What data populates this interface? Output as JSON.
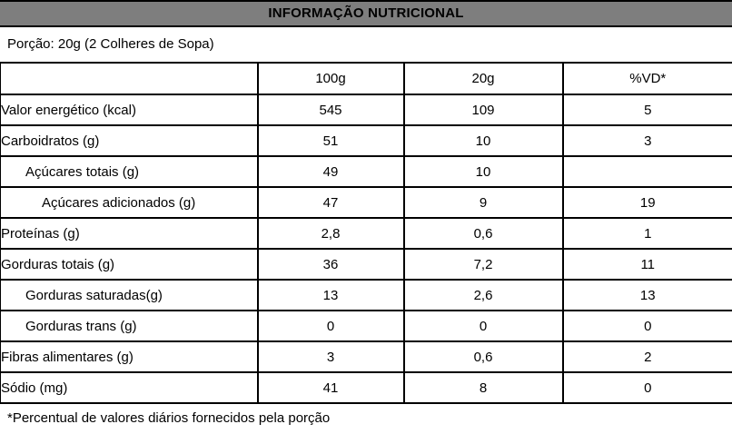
{
  "title_bar": {
    "title": "INFORMAÇÃO NUTRICIONAL",
    "bg_color": "#7e7e7e"
  },
  "serving_info": "Porção: 20g (2 Colheres de Sopa)",
  "table": {
    "columns": [
      "",
      "100g",
      "20g",
      "%VD*"
    ],
    "rows": [
      {
        "label": "Valor energético (kcal)",
        "v100": "545",
        "v20": "109",
        "vd": "5"
      },
      {
        "label": "Carboidratos (g)",
        "v100": "51",
        "v20": "10",
        "vd": "3"
      },
      {
        "label": "Açúcares totais (g)",
        "v100": "49",
        "v20": "10",
        "vd": ""
      },
      {
        "label": "Açúcares adicionados (g)",
        "v100": "47",
        "v20": "9",
        "vd": "19"
      },
      {
        "label": "Proteínas (g)",
        "v100": "2,8",
        "v20": "0,6",
        "vd": "1"
      },
      {
        "label": "Gorduras totais (g)",
        "v100": "36",
        "v20": "7,2",
        "vd": "11"
      },
      {
        "label": "Gorduras saturadas(g)",
        "v100": "13",
        "v20": "2,6",
        "vd": "13"
      },
      {
        "label": "Gorduras trans (g)",
        "v100": "0",
        "v20": "0",
        "vd": "0"
      },
      {
        "label": "Fibras alimentares (g)",
        "v100": "3",
        "v20": "0,6",
        "vd": "2"
      },
      {
        "label": "Sódio (mg)",
        "v100": "41",
        "v20": "8",
        "vd": "0"
      }
    ]
  },
  "footnote": "*Percentual de valores diários fornecidos pela porção"
}
